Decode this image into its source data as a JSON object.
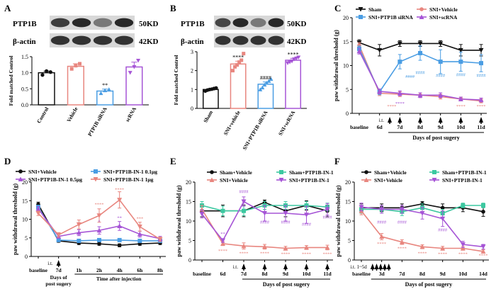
{
  "panels": [
    {
      "id": "A",
      "letter": "A"
    },
    {
      "id": "B",
      "letter": "B"
    },
    {
      "id": "C",
      "letter": "C"
    },
    {
      "id": "D",
      "letter": "D"
    },
    {
      "id": "E",
      "letter": "E"
    },
    {
      "id": "F",
      "letter": "F"
    }
  ],
  "blots": {
    "A": {
      "protein": "PTP1B",
      "protein_kd": "50KD",
      "control": "β-actin",
      "control_kd": "42KD",
      "lanes": 4,
      "band_intensity": [
        0.85,
        0.95,
        0.55,
        0.95
      ]
    },
    "B": {
      "protein": "PTP1B",
      "protein_kd": "50KD",
      "control": "β-actin",
      "control_kd": "42KD",
      "lanes": 4,
      "band_intensity": [
        0.8,
        0.95,
        0.55,
        0.95
      ]
    }
  },
  "colors": {
    "black": "#111111",
    "salmon": "#e8867f",
    "blue": "#4a9de3",
    "purple": "#a655d6",
    "teal": "#3cc8a0"
  },
  "chart_data": [
    {
      "id": "A",
      "type": "bar",
      "ylabel": "Fold matched Control",
      "ylim": [
        0,
        1.5
      ],
      "yticks": [
        0,
        0.5,
        1.0,
        1.5
      ],
      "ytick_labels": [
        "0.0",
        "0.5",
        "1.0",
        "1.5"
      ],
      "categories": [
        "Control",
        "Vehicle",
        "PTP1B siRNA",
        "scRNA"
      ],
      "values": [
        1.0,
        1.2,
        0.43,
        1.18
      ],
      "errors": [
        0.05,
        0.08,
        0.06,
        0.15
      ],
      "points": [
        [
          0.93,
          1.05,
          1.02
        ],
        [
          1.12,
          1.22,
          1.28
        ],
        [
          0.36,
          0.45,
          0.48
        ],
        [
          1.0,
          1.18,
          1.38
        ]
      ],
      "bar_colors": [
        "#111111",
        "#e8867f",
        "#4a9de3",
        "#a655d6"
      ],
      "annotations": [
        {
          "category": 2,
          "text": "**"
        }
      ]
    },
    {
      "id": "B",
      "type": "bar",
      "ylabel": "Fold matched Control",
      "ylim": [
        0,
        3
      ],
      "yticks": [
        0,
        1,
        2,
        3
      ],
      "ytick_labels": [
        "0",
        "1",
        "2",
        "3"
      ],
      "categories": [
        "Sham",
        "SNI+vehicle",
        "SNI+PTP1B siRNA",
        "SNI+scRNA"
      ],
      "values": [
        1.0,
        2.35,
        1.28,
        2.55
      ],
      "errors": [
        0.04,
        0.15,
        0.12,
        0.1
      ],
      "points": [
        [
          0.92,
          0.97,
          1.0,
          1.02,
          1.05,
          1.08
        ],
        [
          2.0,
          2.2,
          2.3,
          2.45,
          2.55,
          2.9
        ],
        [
          1.0,
          1.1,
          1.25,
          1.35,
          1.45,
          1.55
        ],
        [
          2.4,
          2.45,
          2.5,
          2.6,
          2.65,
          2.7
        ]
      ],
      "bar_colors": [
        "#111111",
        "#e8867f",
        "#4a9de3",
        "#a655d6"
      ],
      "annotations": [
        {
          "category": 1,
          "text": "****"
        },
        {
          "category": 2,
          "text": "####"
        },
        {
          "category": 3,
          "text": "****"
        }
      ]
    },
    {
      "id": "C",
      "type": "line",
      "ylabel": "paw withdrawal threshold (g)",
      "ylim": [
        0,
        20
      ],
      "yticks": [
        0,
        5,
        10,
        15,
        20
      ],
      "xlabel": "Days of post sugery",
      "x_labels": [
        "baseline",
        "6d",
        "7d",
        "8d",
        "9d",
        "10d",
        "11d"
      ],
      "x_index": [
        0,
        1,
        2,
        3,
        4,
        5,
        6
      ],
      "it_label": "i.t.",
      "arrow_x": [
        1.5,
        2,
        3,
        4,
        5,
        6
      ],
      "series": [
        {
          "name": "Sham",
          "color": "#111111",
          "marker": "triangle-down",
          "values": [
            14.8,
            13.2,
            14.6,
            14.6,
            14.6,
            13.2,
            13.2
          ],
          "err": [
            0.6,
            1.2,
            0.6,
            0.6,
            0.6,
            1.2,
            1.2
          ]
        },
        {
          "name": "SNI+Vehicle",
          "color": "#e8867f",
          "marker": "circle",
          "values": [
            14.2,
            4.2,
            4.0,
            3.8,
            3.5,
            3.0,
            2.6
          ],
          "err": [
            0.6,
            0.5,
            0.5,
            0.5,
            0.5,
            0.4,
            0.4
          ]
        },
        {
          "name": "SNI+PTP1B siRNA",
          "color": "#4a9de3",
          "marker": "square",
          "values": [
            13.5,
            4.5,
            10.8,
            12.6,
            10.8,
            10.8,
            10.5
          ],
          "err": [
            0.6,
            0.6,
            1.5,
            1.5,
            2.5,
            2.0,
            1.8
          ]
        },
        {
          "name": "SNI+scRNA",
          "color": "#a655d6",
          "marker": "triangle-up",
          "values": [
            13.0,
            4.6,
            4.2,
            3.8,
            3.8,
            3.0,
            2.8
          ],
          "err": [
            0.6,
            0.5,
            0.5,
            0.5,
            0.5,
            0.4,
            0.4
          ]
        }
      ],
      "annotations": [
        {
          "x": 1.6,
          "y": 1.2,
          "text": "****",
          "color": "#e8867f"
        },
        {
          "x": 2,
          "y": 1.8,
          "text": "****",
          "color": "#a655d6"
        },
        {
          "x": 2.5,
          "y": 7.4,
          "text": "####",
          "color": "#4a9de3"
        },
        {
          "x": 3,
          "y": 8.2,
          "text": "####",
          "color": "#4a9de3"
        },
        {
          "x": 4,
          "y": 7.6,
          "text": "####",
          "color": "#4a9de3"
        },
        {
          "x": 5,
          "y": 7.8,
          "text": "####",
          "color": "#4a9de3"
        },
        {
          "x": 6,
          "y": 7.6,
          "text": "####",
          "color": "#4a9de3"
        },
        {
          "x": 5,
          "y": 1.2,
          "text": "****",
          "color": "#e8867f"
        },
        {
          "x": 6,
          "y": 1.2,
          "text": "****",
          "color": "#e8867f"
        }
      ]
    },
    {
      "id": "D",
      "type": "line",
      "ylabel": "paw withdrawal threshold (g)",
      "ylim": [
        0,
        20
      ],
      "yticks": [
        0,
        5,
        10,
        15,
        20
      ],
      "x_labels": [
        "baseline",
        "7d",
        "1h",
        "2h",
        "4h",
        "6h",
        "8h"
      ],
      "x_index": [
        0,
        1,
        2,
        3,
        4,
        5,
        6
      ],
      "xlabel_left": "Days of post sugery",
      "xlabel_right": "Time after injection",
      "it_label": "i.t.",
      "arrow_x": [
        1
      ],
      "series": [
        {
          "name": "SNI+Vehicle",
          "color": "#111111",
          "marker": "circle",
          "values": [
            14.0,
            4.2,
            3.6,
            3.4,
            3.0,
            3.4,
            3.6
          ],
          "err": [
            0.6,
            0.4,
            0.4,
            0.4,
            0.4,
            0.4,
            0.4
          ]
        },
        {
          "name": "SNI+PTP1B-IN-1 0.1μg",
          "color": "#4a9de3",
          "marker": "square",
          "values": [
            13.2,
            4.4,
            4.2,
            4.4,
            4.4,
            4.2,
            4.2
          ],
          "err": [
            0.6,
            0.4,
            0.4,
            0.4,
            0.4,
            0.4,
            0.4
          ]
        },
        {
          "name": "SNI+PTP1B-IN-1 0.5μg",
          "color": "#a655d6",
          "marker": "triangle-up",
          "values": [
            12.8,
            5.4,
            6.4,
            7.0,
            8.2,
            6.0,
            4.8
          ],
          "err": [
            0.6,
            0.5,
            0.8,
            1.0,
            1.2,
            0.8,
            0.6
          ]
        },
        {
          "name": "SNI+PTP1B-IN-1 1μg",
          "color": "#e8867f",
          "marker": "triangle-down",
          "values": [
            11.6,
            5.8,
            8.6,
            11.0,
            15.2,
            8.0,
            4.6
          ],
          "err": [
            0.6,
            0.6,
            1.2,
            1.8,
            2.2,
            1.2,
            0.6
          ]
        }
      ],
      "annotations": [
        {
          "x": 3,
          "y": 13.6,
          "text": "****",
          "color": "#e8867f"
        },
        {
          "x": 4,
          "y": 17.6,
          "text": "****",
          "color": "#e8867f"
        },
        {
          "x": 5,
          "y": 9.8,
          "text": "***",
          "color": "#e8867f"
        },
        {
          "x": 3,
          "y": 9.0,
          "text": "*",
          "color": "#a655d6"
        },
        {
          "x": 4,
          "y": 10.0,
          "text": "**",
          "color": "#a655d6"
        }
      ]
    },
    {
      "id": "E",
      "type": "line",
      "ylabel": "paw withdrawal threshold (g)",
      "ylim": [
        0,
        20
      ],
      "yticks": [
        0,
        5,
        10,
        15,
        20
      ],
      "xlabel": "Days of post sugery",
      "x_labels": [
        "baseline",
        "6d",
        "7d",
        "8d",
        "9d",
        "10d",
        "11d"
      ],
      "x_index": [
        0,
        1,
        2,
        3,
        4,
        5,
        6
      ],
      "it_label": "i.t.",
      "arrow_x": [
        2,
        3,
        4,
        5,
        6
      ],
      "series": [
        {
          "name": "Sham+Vehicle",
          "color": "#111111",
          "marker": "circle",
          "values": [
            12.6,
            12.6,
            12.6,
            14.8,
            12.6,
            14.0,
            12.6
          ],
          "err": [
            1.5,
            1.5,
            1.5,
            0.6,
            1.5,
            1.2,
            1.5
          ]
        },
        {
          "name": "Sham+PTP1B-IN-1",
          "color": "#3cc8a0",
          "marker": "square",
          "values": [
            14.0,
            12.6,
            12.6,
            14.0,
            14.0,
            14.0,
            13.6
          ],
          "err": [
            1.0,
            1.2,
            1.2,
            1.0,
            1.0,
            1.0,
            1.0
          ]
        },
        {
          "name": "SNI+Vehicle",
          "color": "#e8867f",
          "marker": "triangle-up",
          "values": [
            13.0,
            4.2,
            3.6,
            3.4,
            3.0,
            3.2,
            3.2
          ],
          "err": [
            1.0,
            0.5,
            0.8,
            0.6,
            0.5,
            0.5,
            0.6
          ]
        },
        {
          "name": "SNI+PTP1B-IN-1",
          "color": "#a655d6",
          "marker": "triangle-down",
          "values": [
            11.8,
            5.0,
            15.0,
            12.0,
            12.0,
            11.6,
            13.0
          ],
          "err": [
            1.0,
            0.5,
            1.2,
            2.0,
            2.0,
            2.2,
            1.5
          ]
        }
      ],
      "annotations": [
        {
          "x": 1,
          "y": 2.0,
          "text": "****",
          "color": "#e8867f"
        },
        {
          "x": 1,
          "y": 6.4,
          "text": "**",
          "color": "#a655d6"
        },
        {
          "x": 2,
          "y": 17.2,
          "text": "####",
          "color": "#a655d6"
        },
        {
          "x": 3,
          "y": 9.4,
          "text": "####",
          "color": "#a655d6"
        },
        {
          "x": 4,
          "y": 9.4,
          "text": "####",
          "color": "#a655d6"
        },
        {
          "x": 5,
          "y": 8.8,
          "text": "####",
          "color": "#a655d6"
        },
        {
          "x": 6,
          "y": 10.6,
          "text": "####",
          "color": "#a655d6"
        },
        {
          "x": 2,
          "y": 1.4,
          "text": "****",
          "color": "#e8867f"
        },
        {
          "x": 3,
          "y": 1.4,
          "text": "****",
          "color": "#e8867f"
        },
        {
          "x": 4,
          "y": 1.2,
          "text": "****",
          "color": "#e8867f"
        },
        {
          "x": 5,
          "y": 1.2,
          "text": "****",
          "color": "#e8867f"
        },
        {
          "x": 6,
          "y": 1.2,
          "text": "****",
          "color": "#e8867f"
        }
      ]
    },
    {
      "id": "F",
      "type": "line",
      "ylabel": "paw withdrawal threshold (g)",
      "ylim": [
        0,
        20
      ],
      "yticks": [
        0,
        5,
        10,
        15,
        20
      ],
      "xlabel": "Days of post sugery",
      "x_labels": [
        "baseline",
        "3d",
        "7d",
        "8d",
        "9d",
        "10d",
        "14d"
      ],
      "x_index": [
        0,
        1,
        2,
        3,
        4,
        5,
        6
      ],
      "it_label": "i.t.  1~5d",
      "arrow_x": [
        0.55,
        0.75,
        0.95,
        1.15,
        1.35
      ],
      "series": [
        {
          "name": "Sham+Vehicle",
          "color": "#111111",
          "marker": "circle",
          "values": [
            13.4,
            13.4,
            13.4,
            14.4,
            13.4,
            13.4,
            12.4
          ],
          "err": [
            1.0,
            1.0,
            1.0,
            0.6,
            1.0,
            1.0,
            1.2
          ]
        },
        {
          "name": "Sham+PTP1B-IN-1",
          "color": "#3cc8a0",
          "marker": "square",
          "values": [
            13.0,
            13.0,
            12.4,
            13.4,
            12.0,
            14.0,
            14.0
          ],
          "err": [
            1.0,
            1.0,
            1.0,
            1.0,
            1.0,
            0.6,
            0.6
          ]
        },
        {
          "name": "SNI+Vehicle",
          "color": "#e8867f",
          "marker": "triangle-up",
          "values": [
            12.6,
            6.0,
            4.6,
            3.4,
            3.0,
            3.0,
            2.2
          ],
          "err": [
            1.0,
            0.8,
            0.6,
            0.5,
            0.5,
            0.5,
            0.4
          ]
        },
        {
          "name": "SNI+PTP1B-IN-1",
          "color": "#a655d6",
          "marker": "triangle-down",
          "values": [
            13.6,
            13.0,
            13.0,
            12.0,
            10.6,
            4.0,
            3.4
          ],
          "err": [
            1.0,
            1.0,
            1.0,
            1.5,
            2.0,
            0.8,
            0.6
          ]
        }
      ],
      "annotations": [
        {
          "x": 1,
          "y": 9.4,
          "text": "####",
          "color": "#a655d6"
        },
        {
          "x": 2,
          "y": 9.4,
          "text": "####",
          "color": "#a655d6"
        },
        {
          "x": 4,
          "y": 7.4,
          "text": "####",
          "color": "#a655d6"
        },
        {
          "x": 1,
          "y": 3.8,
          "text": "****",
          "color": "#e8867f"
        },
        {
          "x": 2,
          "y": 2.6,
          "text": "****",
          "color": "#e8867f"
        },
        {
          "x": 3,
          "y": 1.4,
          "text": "****",
          "color": "#e8867f"
        },
        {
          "x": 4,
          "y": 1.2,
          "text": "****",
          "color": "#e8867f"
        },
        {
          "x": 5,
          "y": 1.2,
          "text": "****",
          "color": "#e8867f"
        },
        {
          "x": 6,
          "y": 0.8,
          "text": "****",
          "color": "#e8867f"
        }
      ]
    }
  ]
}
